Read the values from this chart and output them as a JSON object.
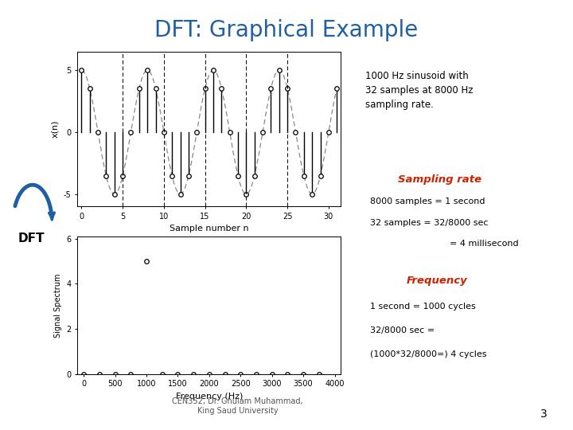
{
  "title": "DFT: Graphical Example",
  "title_color": "#2060A0",
  "title_fontsize": 20,
  "background_color": "#FFFFFF",
  "fs": 8000,
  "f": 1000,
  "N": 32,
  "sinusoid_desc": "1000 Hz sinusoid with\n32 samples at 8000 Hz\nsampling rate.",
  "sampling_rate_title": "Sampling rate",
  "frequency_title": "Frequency",
  "footer_text": "CEN352, Dr. Ghulam Muhammad,\nKing Saud University",
  "page_number": "3",
  "dft_label": "DFT",
  "xlabel_top": "Sample number n",
  "ylabel_top": "x(n)",
  "xlabel_bottom": "Frequency (Hz)",
  "ylabel_bottom": "Signal Spectrum",
  "box_edge_color": "#4472C4",
  "label_red_color": "#CC2200",
  "arrow_color": "#2060A0",
  "dashed_vlines": [
    5,
    10,
    15,
    20,
    25
  ],
  "yticks_top": [
    -5,
    0,
    5
  ],
  "xticks_top": [
    0,
    5,
    10,
    15,
    20,
    25,
    30
  ],
  "yticks_bottom": [
    0,
    2,
    4,
    6
  ],
  "xticks_bottom": [
    0,
    500,
    1000,
    1500,
    2000,
    2500,
    3000,
    3500,
    4000
  ],
  "spectrum_ylim": [
    0,
    6
  ],
  "spectrum_ytop": 6
}
